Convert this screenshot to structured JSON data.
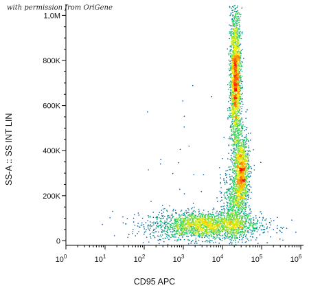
{
  "watermark": "with permission from OriGene",
  "chart_data": {
    "type": "scatter",
    "plot_style": "flow cytometry pseudocolor density dot plot",
    "xlabel": "CD95 APC",
    "ylabel": "SS-A :: SS INT LIN",
    "x_scale": "log",
    "x_range": [
      1,
      1000000
    ],
    "x_ticks": [
      {
        "base": "10",
        "exp": "0",
        "value": 1
      },
      {
        "base": "10",
        "exp": "1",
        "value": 10
      },
      {
        "base": "10",
        "exp": "2",
        "value": 100
      },
      {
        "base": "10",
        "exp": "3",
        "value": 1000
      },
      {
        "base": "10",
        "exp": "4",
        "value": 10000
      },
      {
        "base": "10",
        "exp": "5",
        "value": 100000
      },
      {
        "base": "10",
        "exp": "6",
        "value": 1000000
      }
    ],
    "y_scale": "linear",
    "y_range": [
      -20000,
      1050000
    ],
    "y_ticks": [
      {
        "label": "0",
        "value": 0
      },
      {
        "label": "200K",
        "value": 200000
      },
      {
        "label": "400K",
        "value": 400000
      },
      {
        "label": "600K",
        "value": 600000
      },
      {
        "label": "800K",
        "value": 800000
      },
      {
        "label": "1,0M",
        "value": 1000000
      }
    ],
    "populations": [
      {
        "x_log_center": 3.55,
        "y_center": 70000,
        "x_log_spread": 0.7,
        "y_spread": 30000,
        "weight": 0.34
      },
      {
        "x_log_center": 4.32,
        "y_center": 720000,
        "x_log_spread": 0.07,
        "y_spread": 150000,
        "weight": 0.34
      },
      {
        "x_log_center": 4.48,
        "y_center": 310000,
        "x_log_spread": 0.09,
        "y_spread": 80000,
        "weight": 0.2
      },
      {
        "x_log_center": 4.3,
        "y_center": 160000,
        "x_log_spread": 0.15,
        "y_spread": 90000,
        "weight": 0.12
      }
    ],
    "colors": {
      "low": "#0000cc",
      "mid": "#00cc66",
      "mid_high": "#ffee00",
      "high": "#ff0000"
    }
  }
}
